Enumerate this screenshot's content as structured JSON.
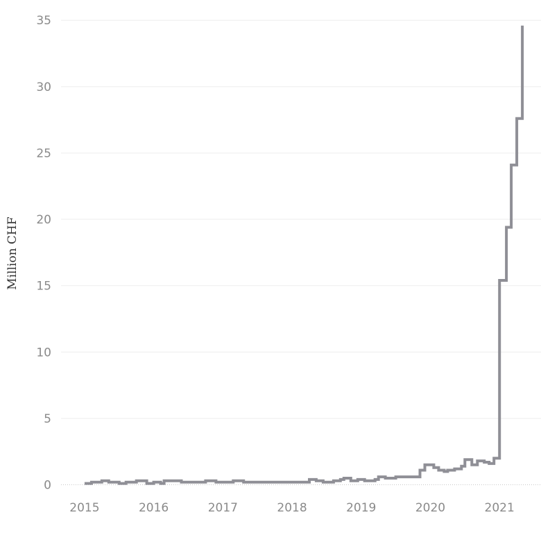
{
  "chart_data": {
    "type": "line",
    "step": true,
    "title": "",
    "xlabel": "",
    "ylabel": "Million CHF",
    "xlim": [
      2014.66,
      2021.6
    ],
    "ylim": [
      -0.6,
      35.9
    ],
    "grid": true,
    "y_ticks": [
      0,
      5,
      10,
      15,
      20,
      25,
      30,
      35
    ],
    "x_ticks": [
      2015,
      2016,
      2017,
      2018,
      2019,
      2020,
      2021
    ],
    "series": [
      {
        "color": "#8f8f96",
        "points": [
          [
            2015.0,
            0.1
          ],
          [
            2015.1,
            0.2
          ],
          [
            2015.25,
            0.3
          ],
          [
            2015.35,
            0.2
          ],
          [
            2015.5,
            0.1
          ],
          [
            2015.6,
            0.2
          ],
          [
            2015.75,
            0.3
          ],
          [
            2015.9,
            0.1
          ],
          [
            2016.0,
            0.2
          ],
          [
            2016.1,
            0.1
          ],
          [
            2016.15,
            0.3
          ],
          [
            2016.4,
            0.2
          ],
          [
            2016.75,
            0.3
          ],
          [
            2016.9,
            0.2
          ],
          [
            2017.15,
            0.3
          ],
          [
            2017.3,
            0.2
          ],
          [
            2018.25,
            0.4
          ],
          [
            2018.35,
            0.3
          ],
          [
            2018.45,
            0.2
          ],
          [
            2018.6,
            0.3
          ],
          [
            2018.7,
            0.4
          ],
          [
            2018.75,
            0.5
          ],
          [
            2018.85,
            0.3
          ],
          [
            2018.95,
            0.4
          ],
          [
            2019.05,
            0.3
          ],
          [
            2019.2,
            0.4
          ],
          [
            2019.25,
            0.6
          ],
          [
            2019.35,
            0.5
          ],
          [
            2019.5,
            0.6
          ],
          [
            2019.85,
            1.1
          ],
          [
            2019.92,
            1.5
          ],
          [
            2020.05,
            1.3
          ],
          [
            2020.12,
            1.1
          ],
          [
            2020.2,
            1.0
          ],
          [
            2020.25,
            1.1
          ],
          [
            2020.35,
            1.2
          ],
          [
            2020.45,
            1.4
          ],
          [
            2020.5,
            1.9
          ],
          [
            2020.6,
            1.5
          ],
          [
            2020.68,
            1.8
          ],
          [
            2020.78,
            1.7
          ],
          [
            2020.85,
            1.6
          ],
          [
            2020.92,
            2.0
          ],
          [
            2021.0,
            15.4
          ],
          [
            2021.1,
            19.4
          ],
          [
            2021.17,
            24.1
          ],
          [
            2021.25,
            27.6
          ],
          [
            2021.33,
            34.6
          ]
        ]
      }
    ]
  }
}
